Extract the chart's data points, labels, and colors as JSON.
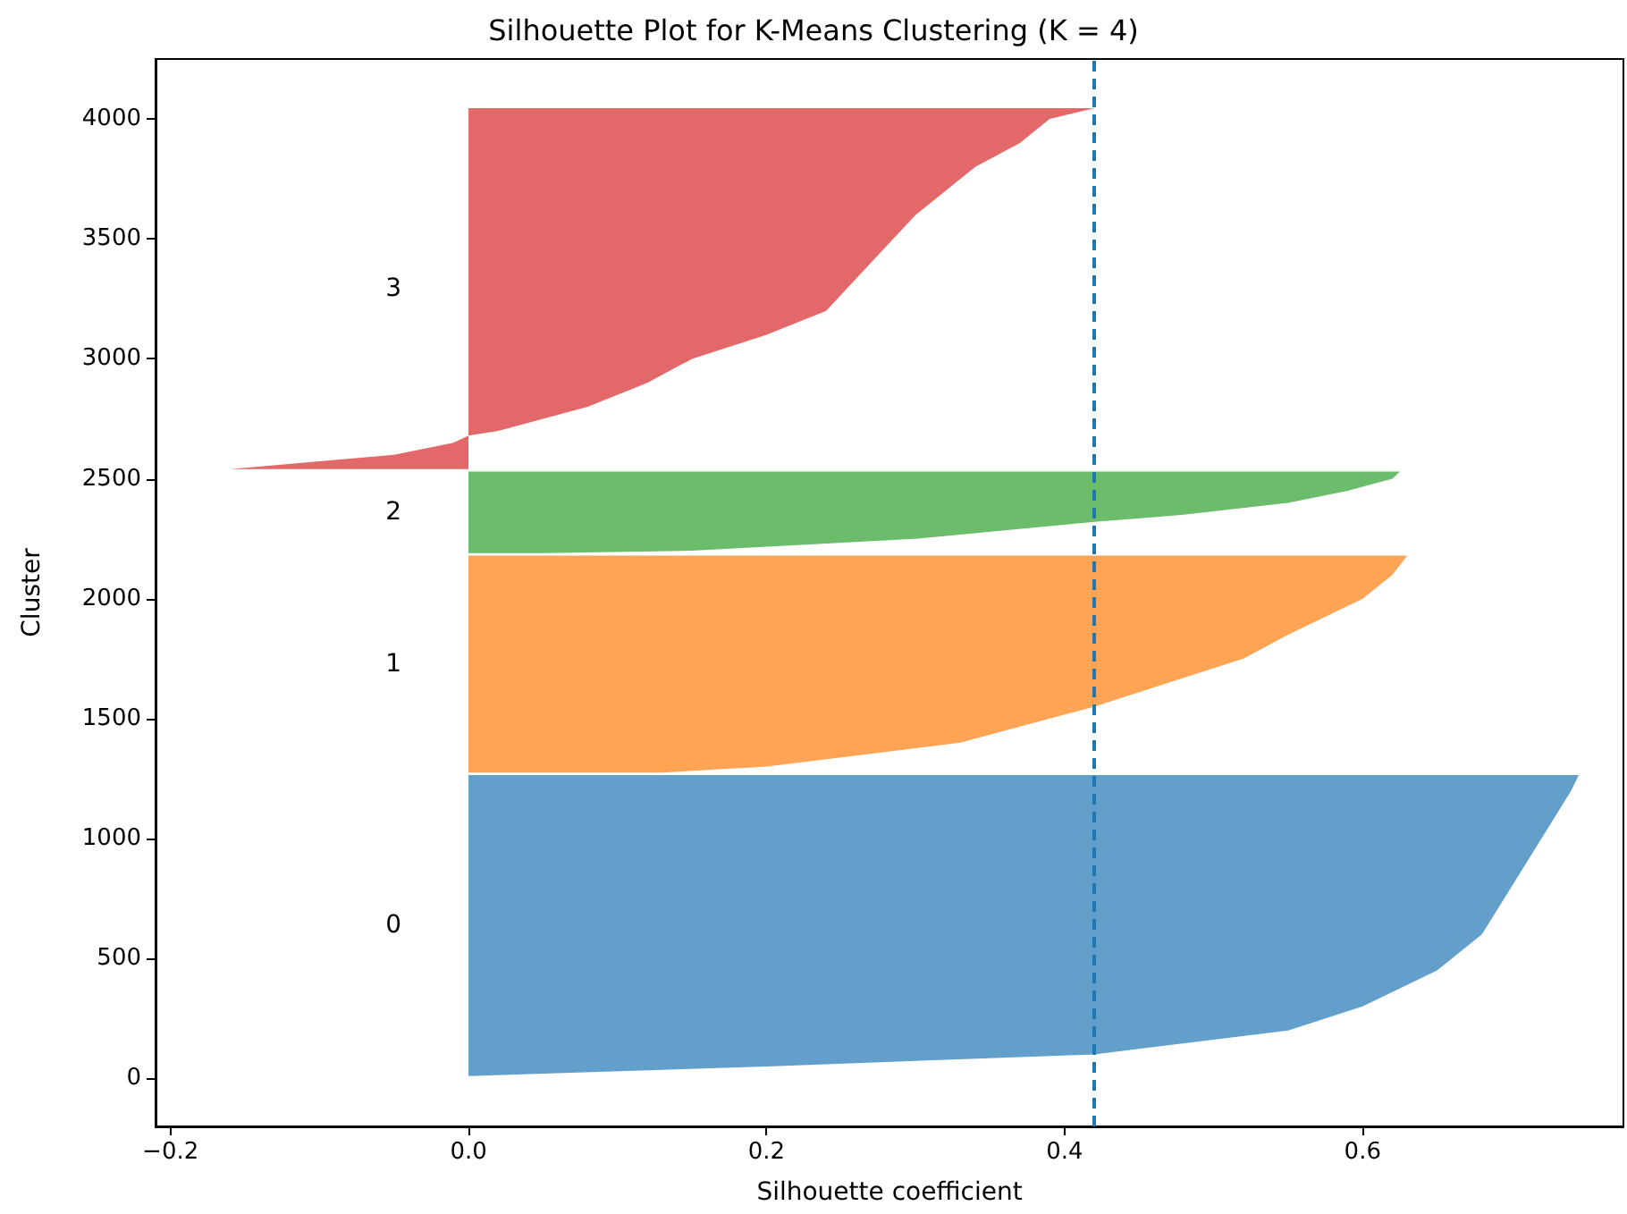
{
  "chart_data": {
    "type": "area",
    "orientation": "horizontal",
    "title": "Silhouette Plot for K-Means Clustering (K = 4)",
    "xlabel": "Silhouette coefficient",
    "ylabel": "Cluster",
    "xlim": [
      -0.21,
      0.775
    ],
    "xticks": [
      {
        "value": -0.2,
        "label": "−0.2"
      },
      {
        "value": 0,
        "label": "0.0"
      },
      0.2,
      0.4,
      0.6
    ],
    "ylim": [
      -200,
      4250
    ],
    "yticks": [
      0,
      500,
      1000,
      1500,
      2000,
      2500,
      3000,
      3500,
      4000
    ],
    "grid": false,
    "series": [
      {
        "color": "#62a0cb",
        "x": [
          10,
          20,
          50,
          100,
          200,
          300,
          450,
          600,
          800,
          1000,
          1200,
          1265
        ],
        "values": [
          0.0,
          0.05,
          0.2,
          0.42,
          0.55,
          0.6,
          0.65,
          0.68,
          0.7,
          0.72,
          0.74,
          0.745
        ]
      },
      {
        "color": "#ffa354",
        "x": [
          1275,
          1300,
          1400,
          1500,
          1550,
          1650,
          1750,
          1850,
          2000,
          2100,
          2180
        ],
        "values": [
          0.13,
          0.2,
          0.33,
          0.39,
          0.42,
          0.47,
          0.52,
          0.55,
          0.6,
          0.62,
          0.63
        ]
      },
      {
        "color": "#6bbc6b",
        "x": [
          2190,
          2200,
          2250,
          2320,
          2350,
          2400,
          2450,
          2500,
          2530
        ],
        "values": [
          0.05,
          0.15,
          0.3,
          0.42,
          0.48,
          0.55,
          0.59,
          0.62,
          0.625
        ]
      },
      {
        "color": "#e26869",
        "x": [
          2540,
          2600,
          2650,
          2680,
          2700,
          2800,
          2900,
          3000,
          3100,
          3200,
          3400,
          3600,
          3800,
          3900,
          4000,
          4045
        ],
        "values": [
          -0.16,
          -0.05,
          -0.01,
          0.0,
          0.02,
          0.08,
          0.12,
          0.15,
          0.2,
          0.24,
          0.27,
          0.3,
          0.34,
          0.37,
          0.39,
          0.42
        ]
      }
    ],
    "ref_lines": [
      {
        "axis": "x",
        "value": 0.42,
        "color": "#1f77b4",
        "line_style": "dashed"
      }
    ],
    "annotations": [
      "0",
      "1",
      "2",
      "3"
    ]
  }
}
